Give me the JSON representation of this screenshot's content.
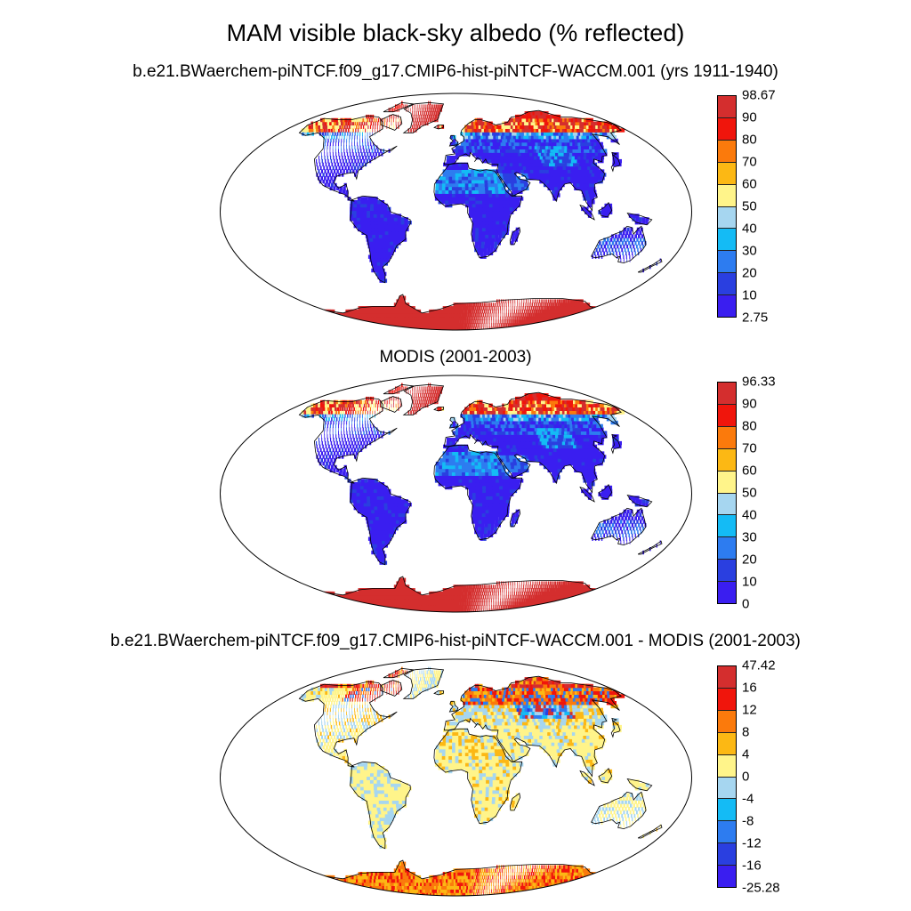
{
  "figure": {
    "title": "MAM visible black-sky albedo (% reflected)"
  },
  "colors": [
    "#3a1ef0",
    "#2a3fe0",
    "#2d7cf0",
    "#14bbf5",
    "#a6d6f0",
    "#fff48a",
    "#fcb814",
    "#fb7a0c",
    "#f0150c",
    "#d42e2e"
  ],
  "panels": [
    {
      "subtitle": "b.e21.BWaerchem-piNTCF.f09_g17.CMIP6-hist-piNTCF-WACCM.001 (yrs 1911-1940)",
      "colorbar": [
        "98.67",
        "90",
        "80",
        "70",
        "60",
        "50",
        "40",
        "30",
        "20",
        "10",
        "2.75"
      ],
      "scheme": "albedo"
    },
    {
      "subtitle": "MODIS (2001-2003)",
      "colorbar": [
        "96.33",
        "90",
        "80",
        "70",
        "60",
        "50",
        "40",
        "30",
        "20",
        "10",
        "0"
      ],
      "scheme": "albedo"
    },
    {
      "subtitle": "b.e21.BWaerchem-piNTCF.f09_g17.CMIP6-hist-piNTCF-WACCM.001 - MODIS (2001-2003)",
      "colorbar": [
        "47.42",
        "16",
        "12",
        "8",
        "4",
        "0",
        "-4",
        "-8",
        "-12",
        "-16",
        "-25.28"
      ],
      "scheme": "difference"
    }
  ]
}
